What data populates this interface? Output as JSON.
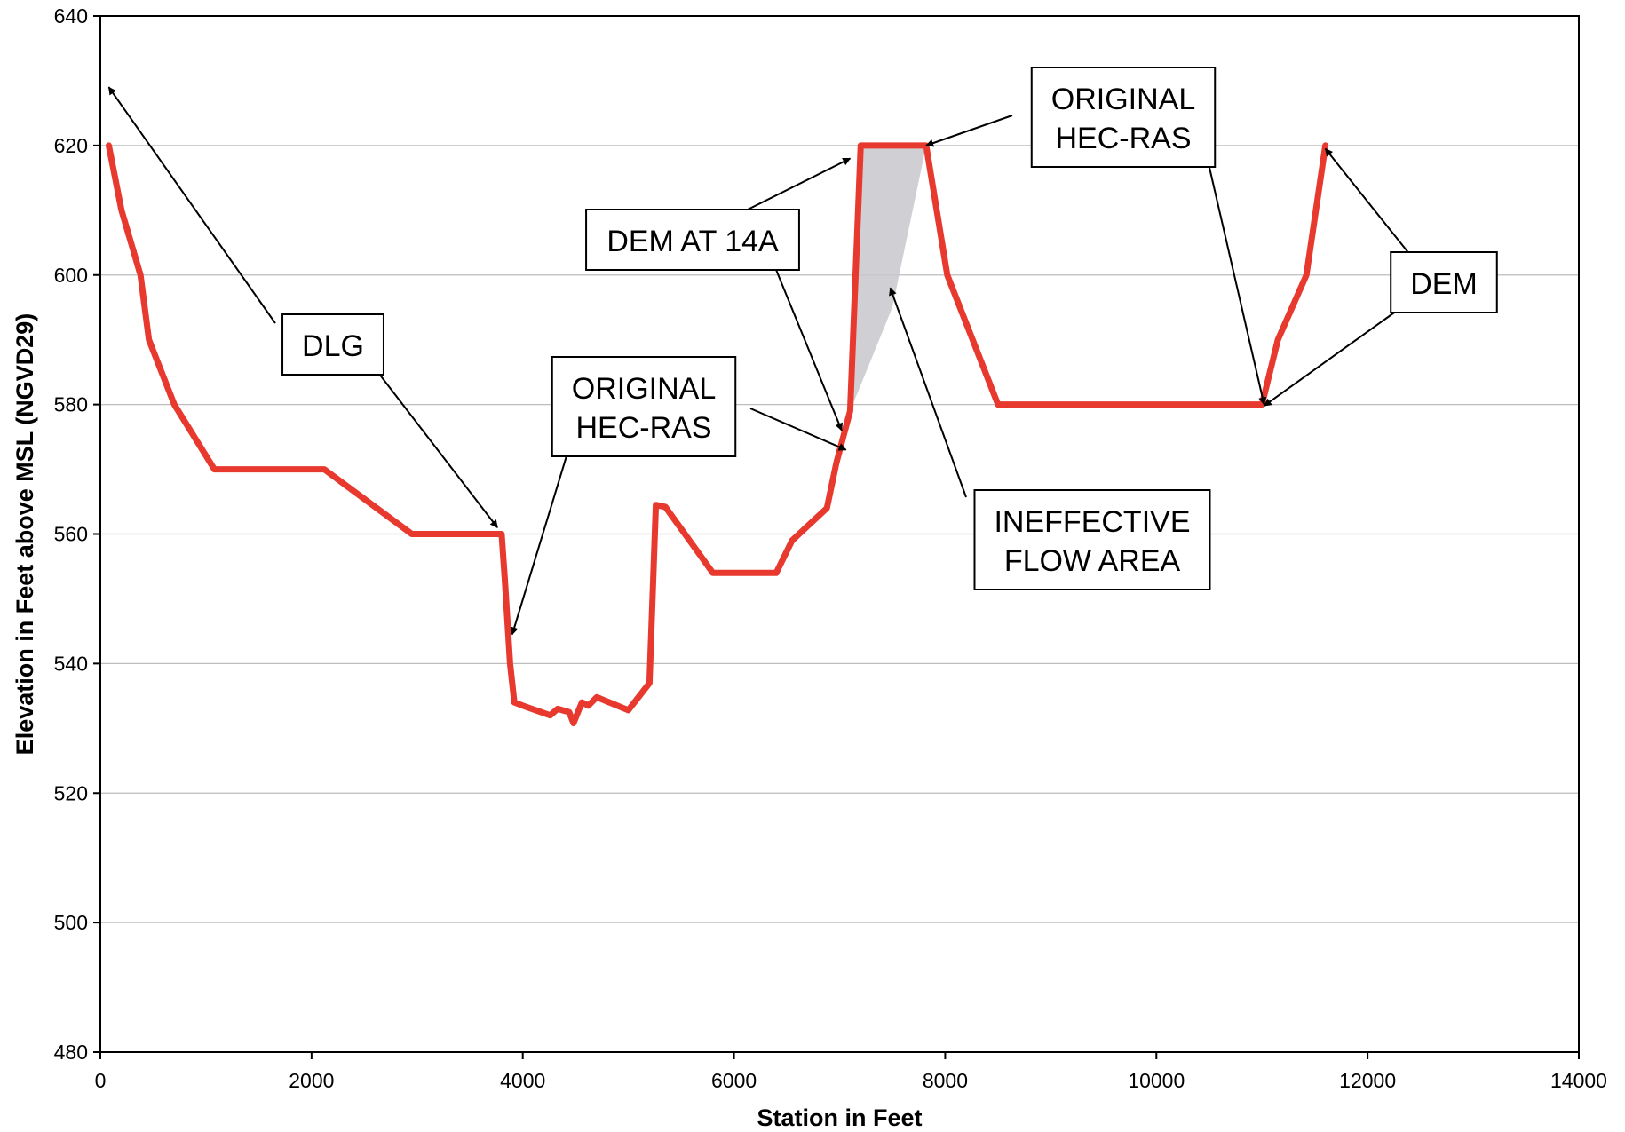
{
  "chart_data": {
    "type": "line",
    "title": "",
    "xlabel": "Station in Feet",
    "ylabel": "Elevation in Feet above MSL (NGVD29)",
    "xlim": [
      0,
      14000
    ],
    "ylim": [
      480,
      640
    ],
    "x_ticks": [
      0,
      2000,
      4000,
      6000,
      8000,
      10000,
      12000,
      14000
    ],
    "y_ticks": [
      480,
      500,
      520,
      540,
      560,
      580,
      600,
      620,
      640
    ],
    "grid": "horizontal",
    "legend": "none",
    "colors": {
      "line": "#e8392f",
      "shade": "#c8c8cc",
      "grid": "#bdbdbd",
      "frame": "#000000"
    },
    "series": [
      {
        "x": [
          80,
          200,
          380,
          460,
          700,
          1080,
          2120,
          2950,
          3800,
          3830,
          3880,
          3920,
          4000,
          4260,
          4330,
          4440,
          4480,
          4560,
          4620,
          4700,
          5000,
          5200,
          5260,
          5350,
          5800,
          6400,
          6550,
          6880,
          6970,
          7100,
          7200,
          7820,
          8020,
          8500,
          11000,
          11150,
          11420,
          11600
        ],
        "y": [
          620,
          610,
          600,
          590,
          580,
          570,
          570,
          560,
          560,
          553,
          540,
          534,
          533.5,
          532,
          533,
          532.5,
          530.8,
          534,
          533.5,
          534.8,
          532.8,
          537,
          564.5,
          564.2,
          554,
          554,
          559,
          564,
          571,
          579,
          620,
          620,
          600,
          580,
          580,
          590,
          600,
          620
        ]
      }
    ],
    "shaded_region": {
      "label": "INEFFECTIVE FLOW AREA",
      "polygon": [
        [
          7100,
          579
        ],
        [
          7200,
          620
        ],
        [
          7820,
          620
        ],
        [
          7500,
          595
        ]
      ]
    },
    "annotations": [
      {
        "lines": [
          "DLG"
        ],
        "arrows": [
          [
            80,
            629
          ],
          [
            3760,
            561
          ]
        ]
      },
      {
        "lines": [
          "ORIGINAL",
          "HEC-RAS"
        ],
        "arrows": [
          [
            3900,
            544.5
          ],
          [
            7060,
            573
          ]
        ]
      },
      {
        "lines": [
          "DEM AT 14A"
        ],
        "arrows": [
          [
            7100,
            618
          ],
          [
            7020,
            576
          ]
        ]
      },
      {
        "lines": [
          "ORIGINAL",
          "HEC-RAS"
        ],
        "arrows": [
          [
            7820,
            620
          ],
          [
            11020,
            580
          ]
        ]
      },
      {
        "lines": [
          "INEFFECTIVE",
          "FLOW AREA"
        ],
        "arrows": [
          [
            7480,
            598
          ]
        ]
      },
      {
        "lines": [
          "DEM"
        ],
        "arrows": [
          [
            11600,
            619.5
          ],
          [
            11020,
            579.8
          ]
        ]
      }
    ]
  }
}
